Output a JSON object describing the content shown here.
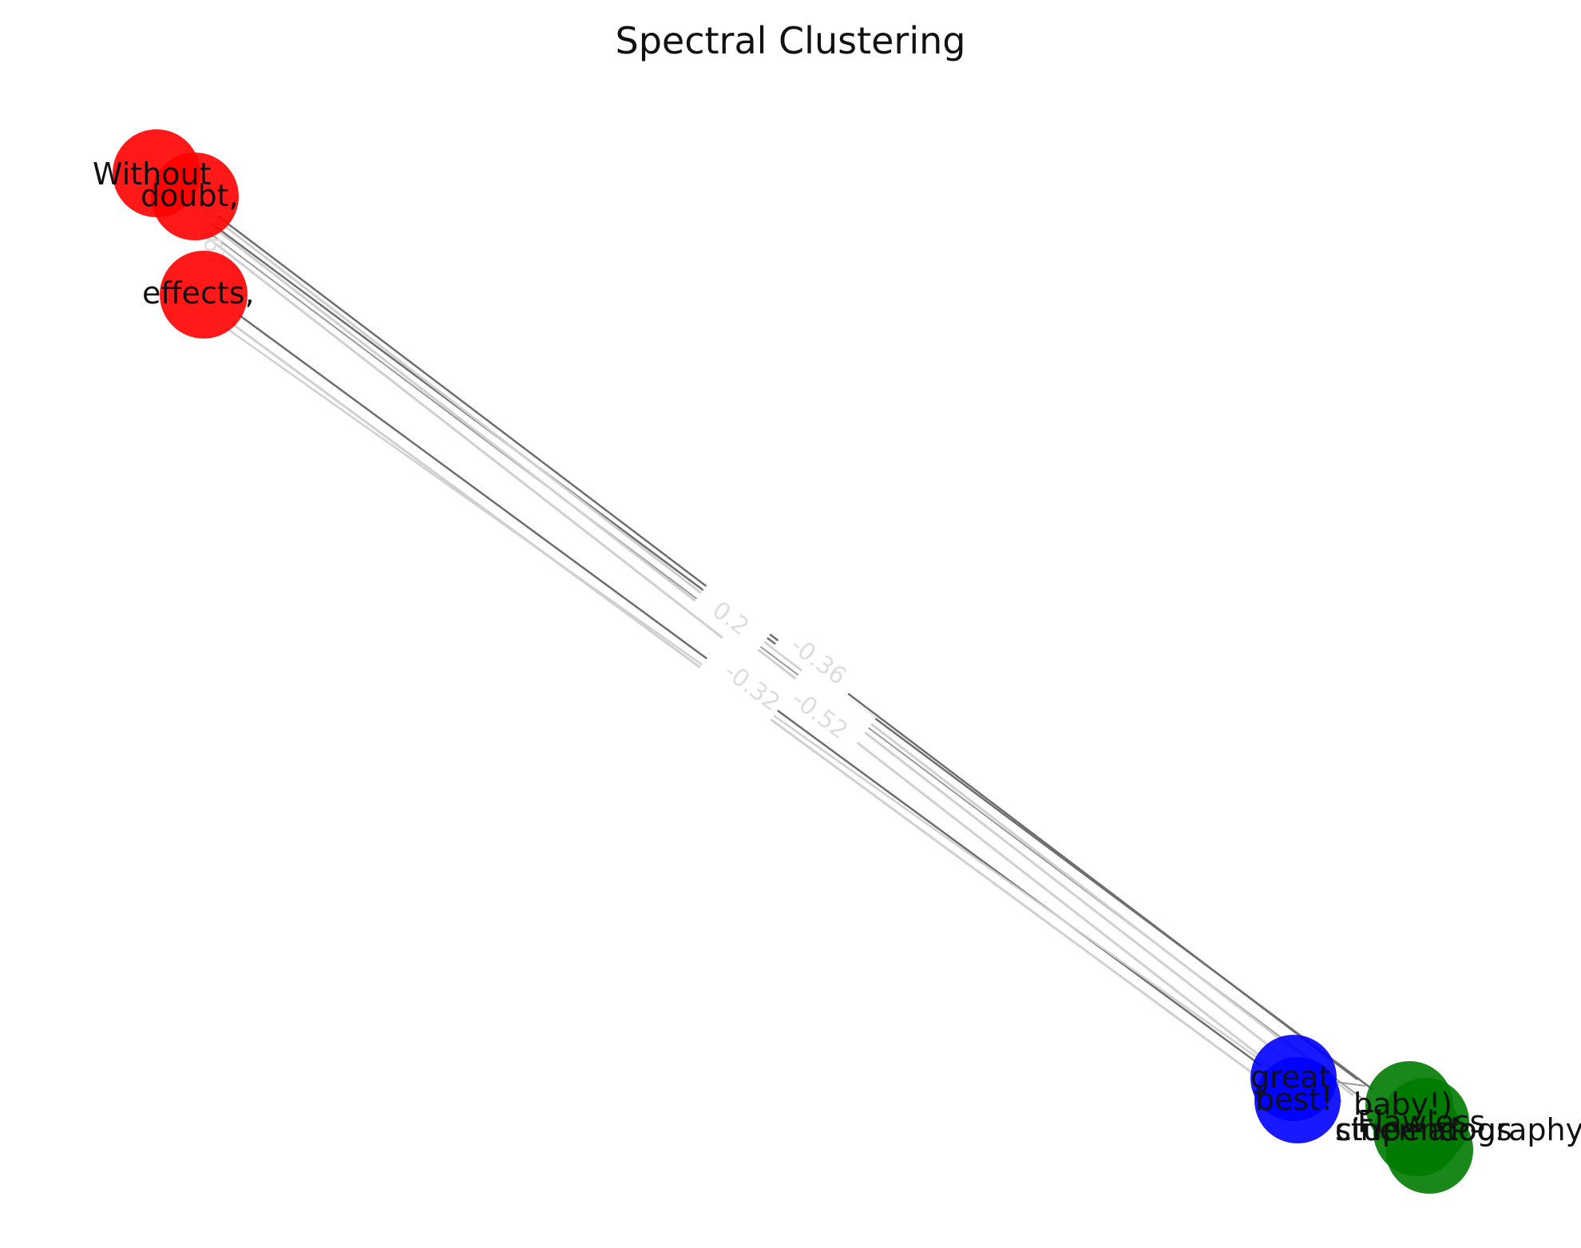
{
  "title": "Spectral Clustering",
  "colors": {
    "red": "#ff0000",
    "blue": "#0000ff",
    "green": "#007a00",
    "edge_dark": "#6e6e6e",
    "edge_light": "#d0d0d0"
  },
  "nodes": [
    {
      "id": "without",
      "label": "Without",
      "cluster": "red"
    },
    {
      "id": "doubt",
      "label": "doubt,",
      "cluster": "red"
    },
    {
      "id": "effects",
      "label": "effects,",
      "cluster": "red"
    },
    {
      "id": "great",
      "label": "great",
      "cluster": "blue"
    },
    {
      "id": "best",
      "label": "best!",
      "cluster": "blue"
    },
    {
      "id": "g1",
      "label": "baby!)",
      "cluster": "green"
    },
    {
      "id": "g2",
      "label": "stupendous",
      "cluster": "green"
    },
    {
      "id": "g3",
      "label": "cinematography,",
      "cluster": "green"
    },
    {
      "id": "g4",
      "label": "Flawless",
      "cluster": "green"
    }
  ],
  "edge_labels": [
    "-0.67",
    "0.2",
    "-0.36",
    "-0.32",
    "-0.52"
  ]
}
